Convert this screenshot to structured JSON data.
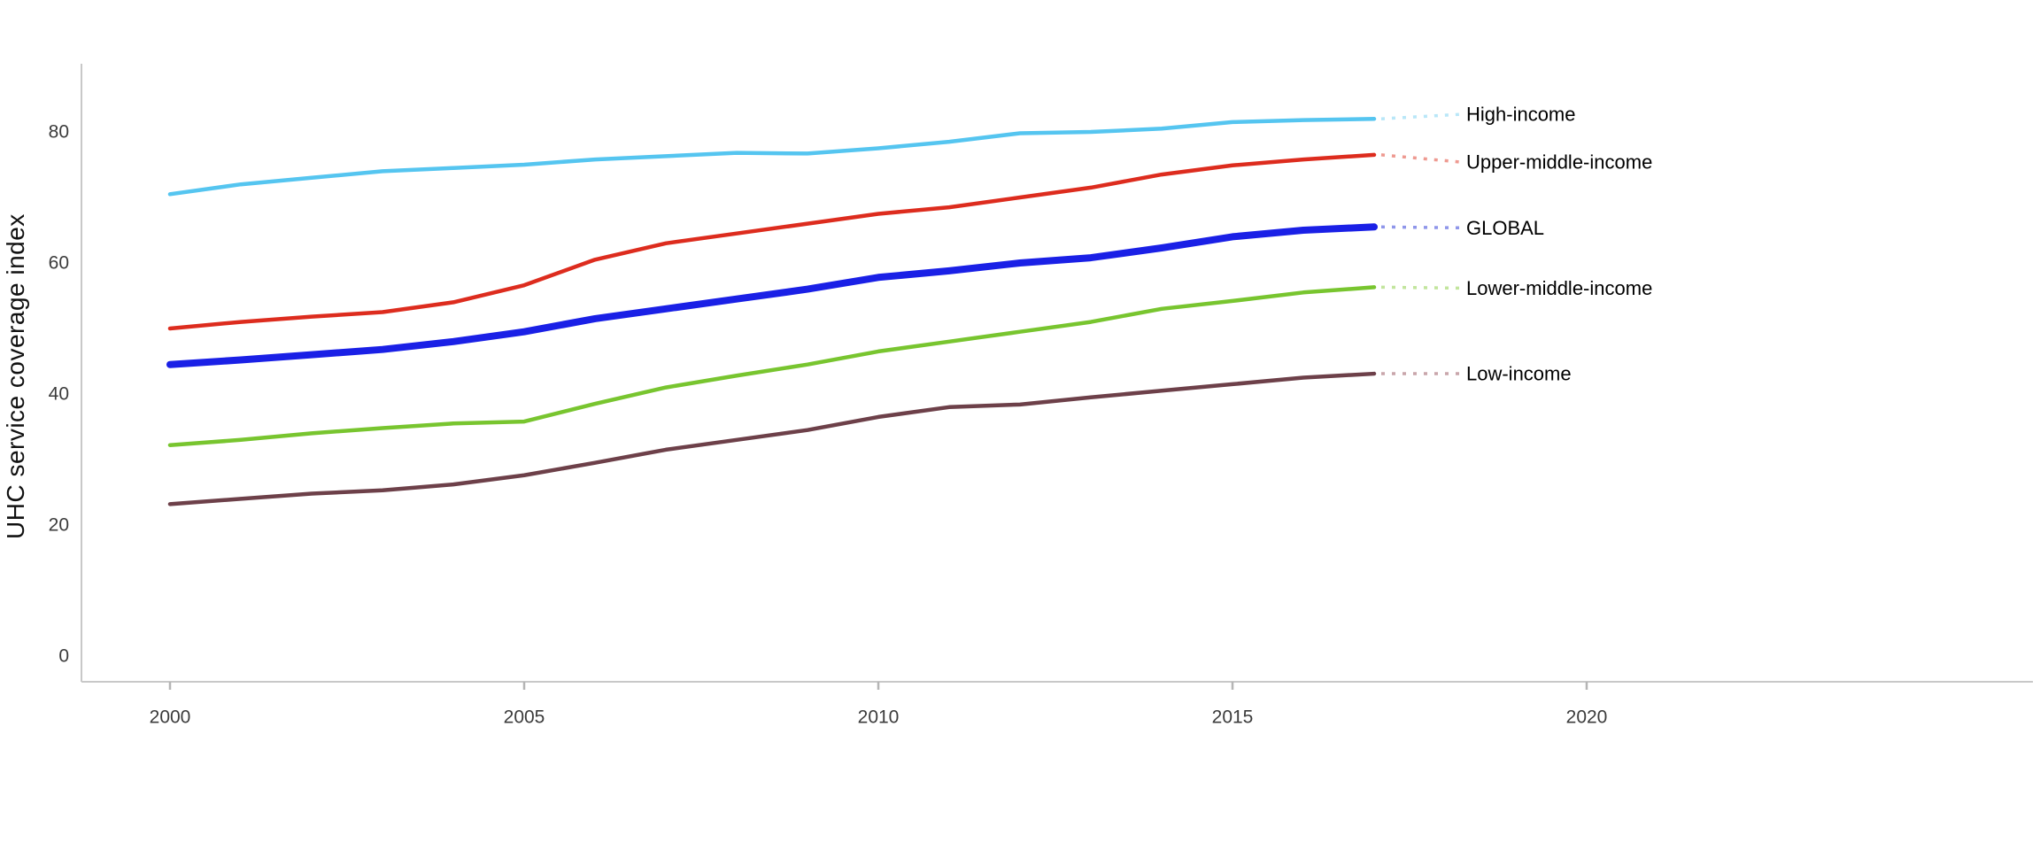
{
  "chart_data": {
    "type": "line",
    "title": "",
    "xlabel": "",
    "ylabel": "UHC service coverage index",
    "x": [
      2000,
      2001,
      2002,
      2003,
      2004,
      2005,
      2006,
      2007,
      2008,
      2009,
      2010,
      2011,
      2012,
      2013,
      2014,
      2015,
      2016,
      2017
    ],
    "x_ticks": [
      2000,
      2005,
      2010,
      2015,
      2020
    ],
    "y_ticks": [
      0,
      20,
      40,
      60,
      80
    ],
    "xlim": [
      1998.75,
      2026.3
    ],
    "ylim": [
      0,
      90
    ],
    "grid": false,
    "legend_position": "right-edge-line-labels",
    "axis_color": "#c8c8c8",
    "tick_color": "#b5b5b5",
    "tick_label_color": "#3b3b3b",
    "label_color": "#000000",
    "series": [
      {
        "name": "High-income",
        "color": "#55c5f0",
        "leader_color": "#b9e7f8",
        "line_width": 4.5,
        "values": [
          70.5,
          72.0,
          73.0,
          74.0,
          74.5,
          75.0,
          75.8,
          76.3,
          76.8,
          76.7,
          77.5,
          78.5,
          79.8,
          80.0,
          80.5,
          81.5,
          81.8,
          82.0
        ]
      },
      {
        "name": "Upper-middle-income",
        "color": "#dd2c1e",
        "leader_color": "#ee9a91",
        "line_width": 4.5,
        "values": [
          50.0,
          51.0,
          51.8,
          52.5,
          54.0,
          56.6,
          60.5,
          63.0,
          64.5,
          66.0,
          67.5,
          68.5,
          70.0,
          71.5,
          73.5,
          74.9,
          75.8,
          76.5
        ]
      },
      {
        "name": "GLOBAL",
        "color": "#1a20e6",
        "leader_color": "#8f96ea",
        "line_width": 8,
        "values": [
          44.5,
          45.2,
          46.0,
          46.8,
          48.0,
          49.5,
          51.5,
          53.0,
          54.5,
          56.0,
          57.8,
          58.8,
          60.0,
          60.8,
          62.3,
          64.0,
          65.0,
          65.5
        ]
      },
      {
        "name": "Lower-middle-income",
        "color": "#78c52f",
        "leader_color": "#c2e59d",
        "line_width": 4.5,
        "values": [
          32.2,
          33.0,
          34.0,
          34.8,
          35.5,
          35.8,
          38.5,
          41.0,
          42.8,
          44.5,
          46.5,
          48.0,
          49.5,
          51.0,
          53.0,
          54.2,
          55.5,
          56.3
        ]
      },
      {
        "name": "Low-income",
        "color": "#6d4049",
        "leader_color": "#c9a6ab",
        "line_width": 4.5,
        "values": [
          23.2,
          24.0,
          24.8,
          25.3,
          26.2,
          27.6,
          29.5,
          31.5,
          33.0,
          34.5,
          36.5,
          38.0,
          38.4,
          39.5,
          40.5,
          41.5,
          42.5,
          43.1
        ]
      }
    ]
  }
}
